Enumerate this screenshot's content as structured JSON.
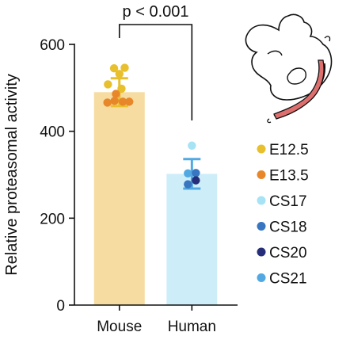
{
  "chart_data": {
    "type": "bar",
    "ylabel": "Relative proteasomal  activity",
    "ylim": [
      0,
      600
    ],
    "yticks": [
      0,
      200,
      400,
      600
    ],
    "categories": [
      "Mouse",
      "Human"
    ],
    "bars": [
      {
        "category": "Mouse",
        "mean": 490,
        "error_low": 458,
        "error_high": 522,
        "color": "#f6dca1"
      },
      {
        "category": "Human",
        "mean": 302,
        "error_low": 268,
        "error_high": 336,
        "color": "#cdeef9"
      }
    ],
    "points": [
      {
        "category": "Mouse",
        "series": "E12.5",
        "offset": -0.2,
        "y": 545
      },
      {
        "category": "Mouse",
        "series": "E12.5",
        "offset": 0.2,
        "y": 546
      },
      {
        "category": "Mouse",
        "series": "E12.5",
        "offset": 0.0,
        "y": 532
      },
      {
        "category": "Mouse",
        "series": "E12.5",
        "offset": -0.43,
        "y": 508
      },
      {
        "category": "Mouse",
        "series": "E12.5",
        "offset": 0.08,
        "y": 498
      },
      {
        "category": "Mouse",
        "series": "E13.5",
        "offset": -0.13,
        "y": 486
      },
      {
        "category": "Mouse",
        "series": "E13.5",
        "offset": -0.45,
        "y": 466
      },
      {
        "category": "Mouse",
        "series": "E13.5",
        "offset": -0.18,
        "y": 470
      },
      {
        "category": "Mouse",
        "series": "E13.5",
        "offset": 0.13,
        "y": 468
      },
      {
        "category": "Mouse",
        "series": "E13.5",
        "offset": 0.37,
        "y": 468
      },
      {
        "category": "Human",
        "series": "CS17",
        "offset": 0.0,
        "y": 367
      },
      {
        "category": "Human",
        "series": "CS21",
        "offset": -0.15,
        "y": 303
      },
      {
        "category": "Human",
        "series": "CS18",
        "offset": 0.15,
        "y": 304
      },
      {
        "category": "Human",
        "series": "CS20",
        "offset": 0.15,
        "y": 287
      },
      {
        "category": "Human",
        "series": "CS18",
        "offset": -0.15,
        "y": 278
      }
    ],
    "series": [
      {
        "name": "E12.5",
        "color": "#e8c02d"
      },
      {
        "name": "E13.5",
        "color": "#e8872a"
      },
      {
        "name": "CS17",
        "color": "#a6e3f5"
      },
      {
        "name": "CS18",
        "color": "#3876c2"
      },
      {
        "name": "CS20",
        "color": "#262e7a"
      },
      {
        "name": "CS21",
        "color": "#52a9e2"
      }
    ],
    "annotation": {
      "label": "p < 0.001",
      "between": [
        "Mouse",
        "Human"
      ]
    },
    "legend_position": "right",
    "grid": false
  },
  "illustration": {
    "icon": "embryo-icon",
    "highlight_color": "#de6f6f"
  }
}
